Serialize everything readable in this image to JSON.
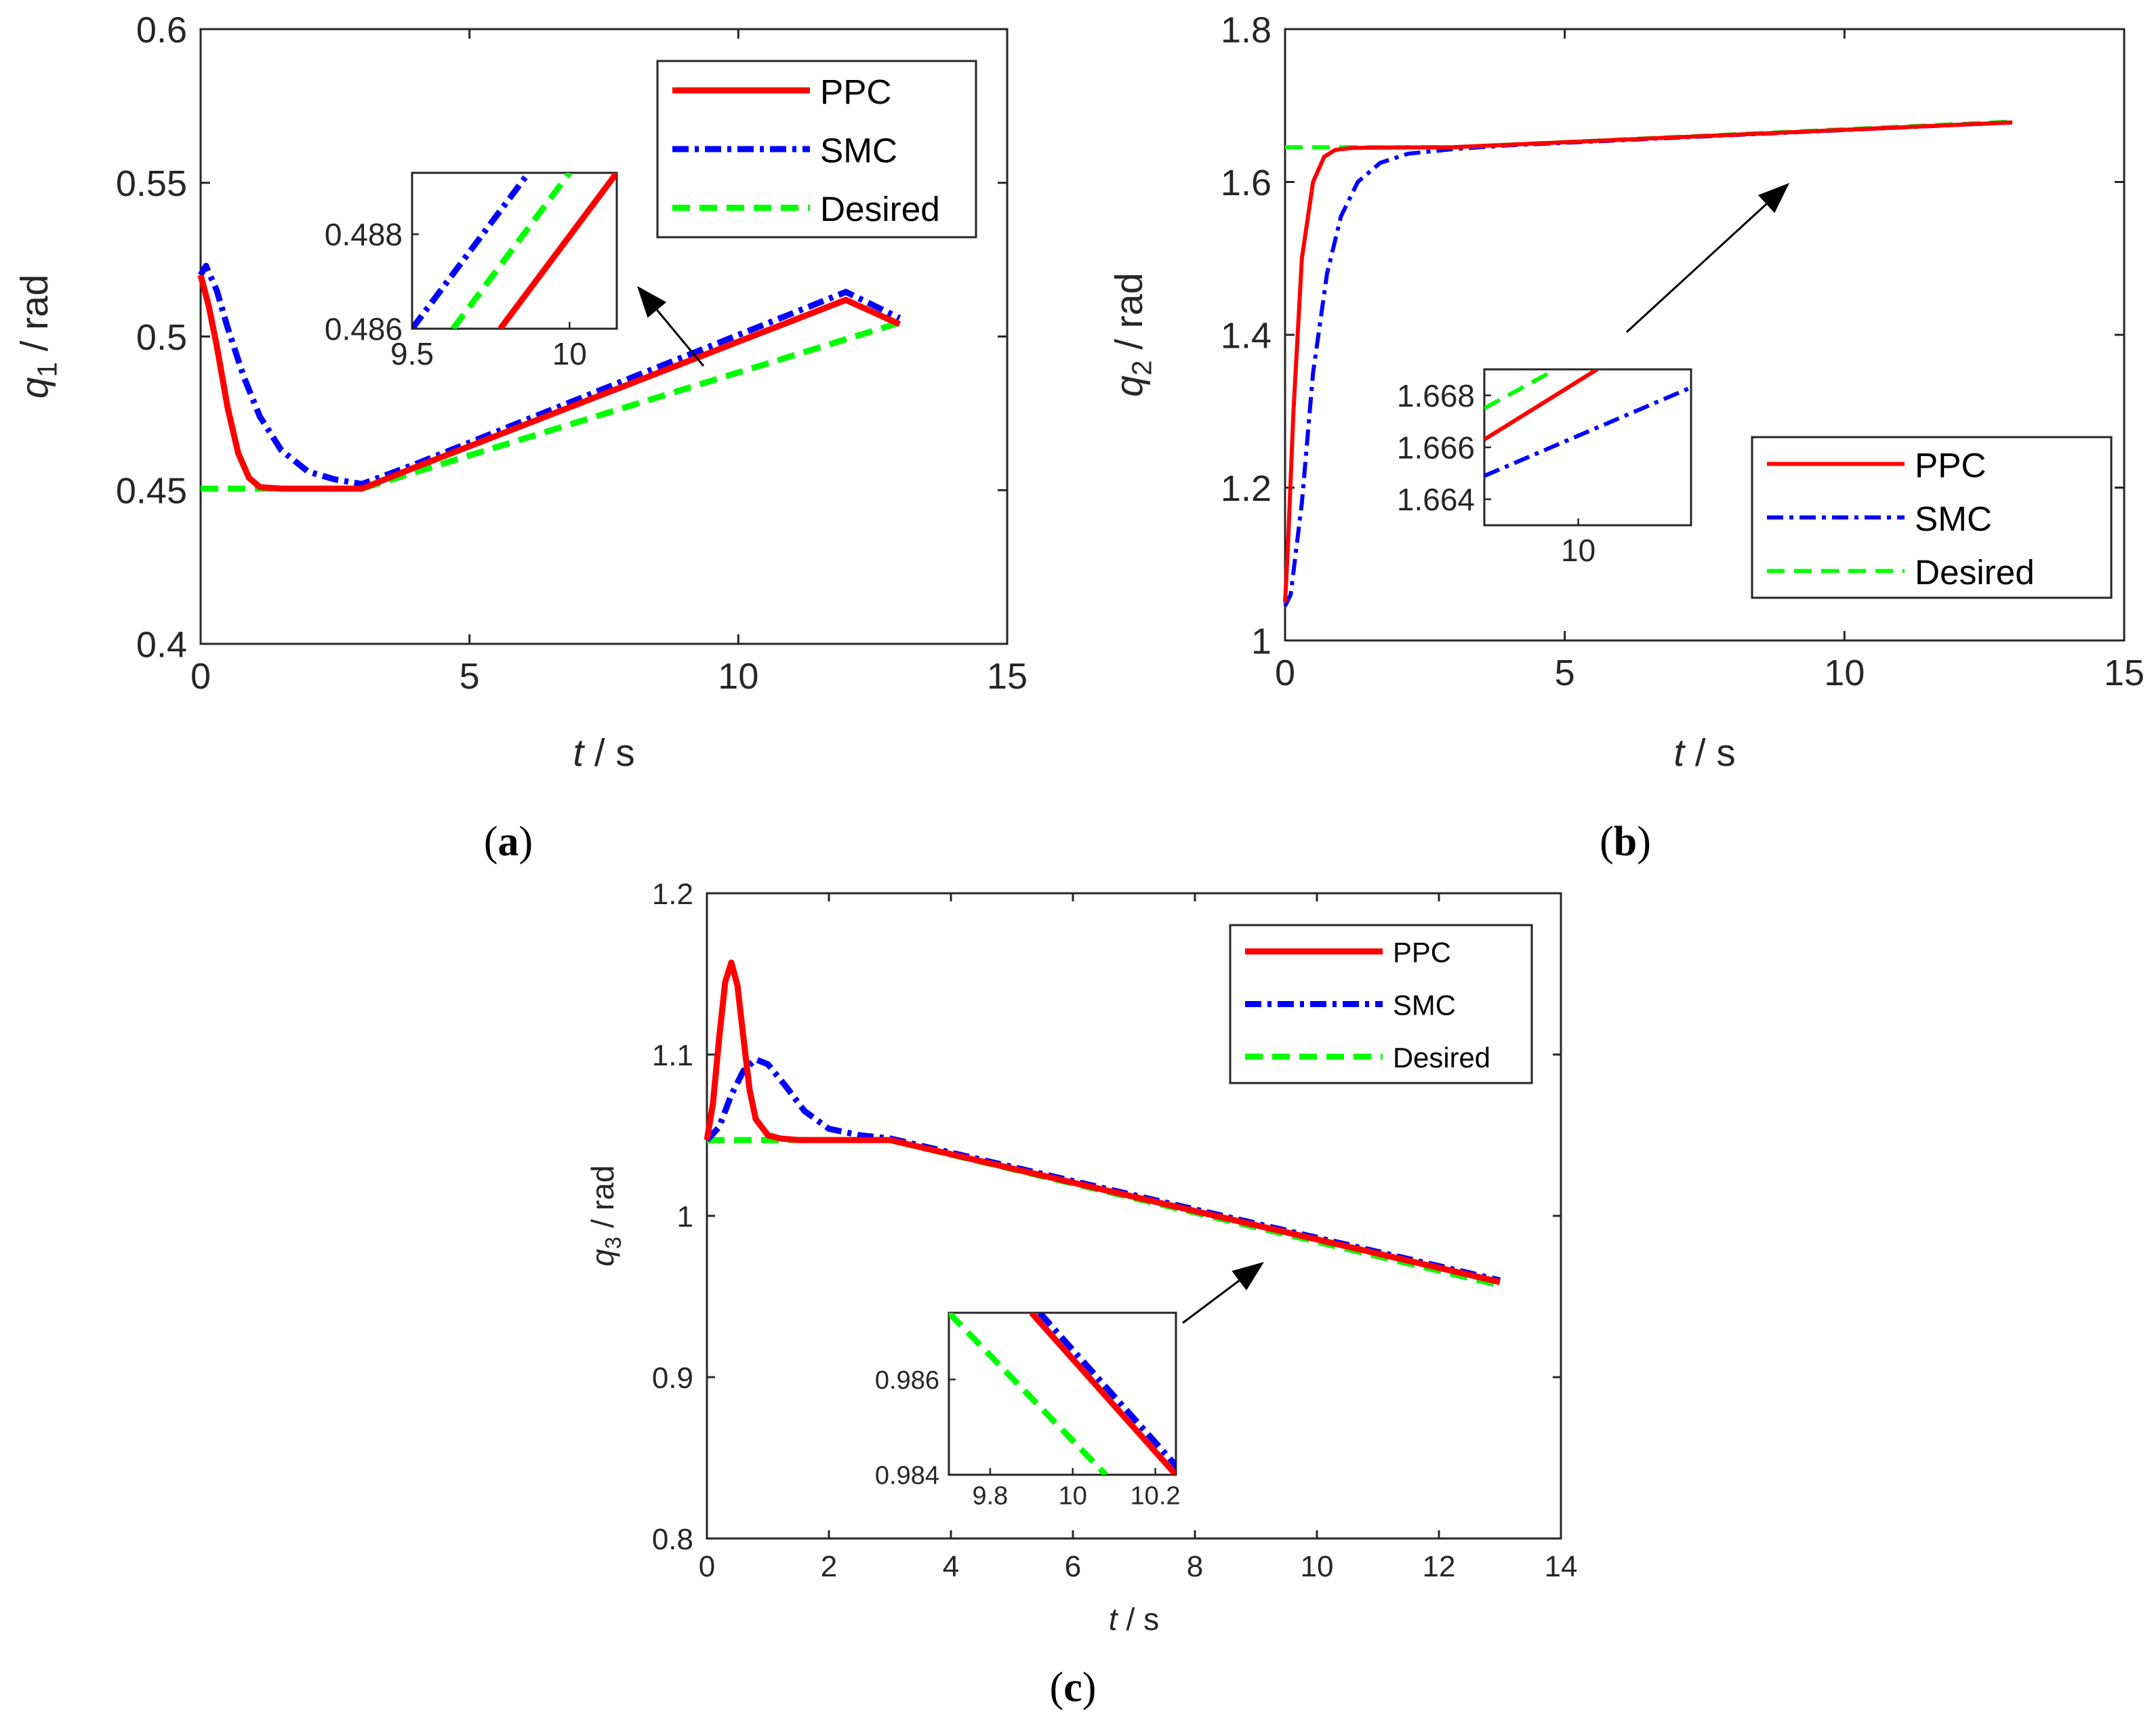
{
  "chart_data": [
    {
      "id": "a",
      "type": "line",
      "caption": "a",
      "ylabel_var": "q",
      "ylabel_sub": "1",
      "ylabel_unit": " / rad",
      "xlabel_var": "t",
      "xlabel_unit": " / s",
      "xlim": [
        0,
        15
      ],
      "ylim": [
        0.4,
        0.6
      ],
      "xticks": [
        0,
        5,
        10,
        15
      ],
      "xtick_labels": [
        "0",
        "5",
        "10",
        "15"
      ],
      "yticks": [
        0.4,
        0.45,
        0.5,
        0.55,
        0.6
      ],
      "ytick_labels": [
        "0.4",
        "0.45",
        "0.5",
        "0.55",
        "0.6"
      ],
      "legend_position": "top-right",
      "series": [
        {
          "name": "PPC",
          "color": "#ff0000",
          "style": "solid",
          "x": [
            0,
            0.15,
            0.3,
            0.5,
            0.7,
            0.9,
            1.1,
            1.5,
            2,
            3,
            4,
            5,
            6,
            7,
            8,
            9,
            10,
            11,
            12,
            13
          ],
          "y": [
            0.52,
            0.51,
            0.497,
            0.477,
            0.462,
            0.454,
            0.451,
            0.4505,
            0.4505,
            0.4505,
            0.4575,
            0.4643,
            0.4711,
            0.4779,
            0.4847,
            0.4915,
            0.4983,
            0.5051,
            0.5119,
            0.504
          ]
        },
        {
          "name": "SMC",
          "color": "#0000ff",
          "style": "dashdot",
          "x": [
            0,
            0.1,
            0.3,
            0.5,
            0.8,
            1.1,
            1.5,
            2,
            2.5,
            3,
            4,
            5,
            6,
            7,
            8,
            9,
            10,
            11,
            12,
            13
          ],
          "y": [
            0.52,
            0.523,
            0.515,
            0.503,
            0.487,
            0.474,
            0.463,
            0.456,
            0.4535,
            0.452,
            0.4585,
            0.4655,
            0.4725,
            0.4795,
            0.4865,
            0.4935,
            0.5005,
            0.5075,
            0.5145,
            0.506
          ]
        },
        {
          "name": "Desired",
          "color": "#00ff00",
          "style": "dashed",
          "x": [
            0,
            3,
            13
          ],
          "y": [
            0.4505,
            0.4505,
            0.5045
          ]
        }
      ],
      "inset": {
        "xlim": [
          9.5,
          10.15
        ],
        "ylim": [
          0.486,
          0.4893
        ],
        "xticks": [
          9.5,
          10
        ],
        "xtick_labels": [
          "9.5",
          "10"
        ],
        "yticks": [
          0.486,
          0.488
        ],
        "ytick_labels": [
          "0.486",
          "0.488"
        ],
        "series": [
          {
            "name": "PPC",
            "x": [
              9.78,
              10.15
            ],
            "y": [
              0.486,
              0.4893
            ]
          },
          {
            "name": "SMC",
            "x": [
              9.5,
              9.87
            ],
            "y": [
              0.486,
              0.4893
            ]
          },
          {
            "name": "Desired",
            "x": [
              9.63,
              10.0
            ],
            "y": [
              0.486,
              0.4893
            ]
          }
        ]
      }
    },
    {
      "id": "b",
      "type": "line",
      "caption": "b",
      "ylabel_var": "q",
      "ylabel_sub": "2",
      "ylabel_unit": " / rad",
      "xlabel_var": "t",
      "xlabel_unit": " / s",
      "xlim": [
        0,
        15
      ],
      "ylim": [
        1,
        1.8
      ],
      "xticks": [
        0,
        5,
        10,
        15
      ],
      "xtick_labels": [
        "0",
        "5",
        "10",
        "15"
      ],
      "yticks": [
        1,
        1.2,
        1.4,
        1.6,
        1.8
      ],
      "ytick_labels": [
        "1",
        "1.2",
        "1.4",
        "1.6",
        "1.8"
      ],
      "legend_position": "bottom-right",
      "series": [
        {
          "name": "PPC",
          "color": "#ff0000",
          "style": "solid",
          "x": [
            0,
            0.05,
            0.15,
            0.3,
            0.5,
            0.7,
            0.9,
            1.2,
            1.6,
            3,
            13
          ],
          "y": [
            1.05,
            1.12,
            1.3,
            1.5,
            1.6,
            1.633,
            1.642,
            1.6445,
            1.645,
            1.6455,
            1.678
          ]
        },
        {
          "name": "SMC",
          "color": "#0000ff",
          "style": "dashdot",
          "x": [
            0,
            0.1,
            0.3,
            0.5,
            0.75,
            1.0,
            1.3,
            1.7,
            2.2,
            3,
            4,
            13
          ],
          "y": [
            1.045,
            1.06,
            1.18,
            1.35,
            1.48,
            1.555,
            1.6,
            1.625,
            1.637,
            1.643,
            1.648,
            1.678
          ]
        },
        {
          "name": "Desired",
          "color": "#00ff00",
          "style": "dashed",
          "x": [
            0,
            3,
            13
          ],
          "y": [
            1.6455,
            1.6455,
            1.679
          ]
        }
      ],
      "inset": {
        "xlim": [
          9.75,
          10.3
        ],
        "ylim": [
          1.663,
          1.669
        ],
        "xticks": [
          10
        ],
        "xtick_labels": [
          "10"
        ],
        "yticks": [
          1.664,
          1.666,
          1.668
        ],
        "ytick_labels": [
          "1.664",
          "1.666",
          "1.668"
        ],
        "series": [
          {
            "name": "PPC",
            "x": [
              9.75,
              10.05
            ],
            "y": [
              1.6663,
              1.669
            ]
          },
          {
            "name": "SMC",
            "x": [
              9.75,
              10.3
            ],
            "y": [
              1.6649,
              1.6683
            ]
          },
          {
            "name": "Desired",
            "x": [
              9.75,
              9.94
            ],
            "y": [
              1.6675,
              1.669
            ]
          }
        ]
      }
    },
    {
      "id": "c",
      "type": "line",
      "caption": "c",
      "ylabel_var": "q",
      "ylabel_sub": "3",
      "ylabel_unit": " / rad",
      "xlabel_var": "t",
      "xlabel_unit": " / s",
      "xlim": [
        0,
        14
      ],
      "ylim": [
        0.8,
        1.2
      ],
      "xticks": [
        0,
        2,
        4,
        6,
        8,
        10,
        12,
        14
      ],
      "xtick_labels": [
        "0",
        "2",
        "4",
        "6",
        "8",
        "10",
        "12",
        "14"
      ],
      "yticks": [
        0.8,
        0.9,
        1.0,
        1.1,
        1.2
      ],
      "ytick_labels": [
        "0.8",
        "0.9",
        "1",
        "1.1",
        "1.2"
      ],
      "legend_position": "top-right",
      "series": [
        {
          "name": "PPC",
          "color": "#ff0000",
          "style": "solid",
          "x": [
            0,
            0.1,
            0.2,
            0.3,
            0.4,
            0.5,
            0.6,
            0.7,
            0.8,
            1.0,
            1.2,
            1.5,
            3,
            13
          ],
          "y": [
            1.047,
            1.07,
            1.11,
            1.145,
            1.157,
            1.143,
            1.11,
            1.078,
            1.06,
            1.05,
            1.048,
            1.047,
            1.047,
            0.959
          ]
        },
        {
          "name": "SMC",
          "color": "#0000ff",
          "style": "dashdot",
          "x": [
            0,
            0.2,
            0.4,
            0.6,
            0.8,
            1.0,
            1.3,
            1.6,
            2.0,
            2.5,
            3,
            13
          ],
          "y": [
            1.047,
            1.055,
            1.075,
            1.09,
            1.097,
            1.094,
            1.08,
            1.065,
            1.054,
            1.05,
            1.048,
            0.96
          ]
        },
        {
          "name": "Desired",
          "color": "#00ff00",
          "style": "dashed",
          "x": [
            0,
            3,
            13
          ],
          "y": [
            1.047,
            1.047,
            0.957
          ]
        }
      ],
      "inset": {
        "xlim": [
          9.7,
          10.25
        ],
        "ylim": [
          0.984,
          0.9874
        ],
        "xticks": [
          9.8,
          10,
          10.2
        ],
        "xtick_labels": [
          "9.8",
          "10",
          "10.2"
        ],
        "yticks": [
          0.984,
          0.986
        ],
        "ytick_labels": [
          "0.984",
          "0.986"
        ],
        "series": [
          {
            "name": "PPC",
            "x": [
              9.9,
              10.25
            ],
            "y": [
              0.9874,
              0.984
            ]
          },
          {
            "name": "SMC",
            "x": [
              9.92,
              10.27
            ],
            "y": [
              0.9874,
              0.984
            ]
          },
          {
            "name": "Desired",
            "x": [
              9.7,
              10.08
            ],
            "y": [
              0.9874,
              0.984
            ]
          }
        ]
      }
    }
  ]
}
